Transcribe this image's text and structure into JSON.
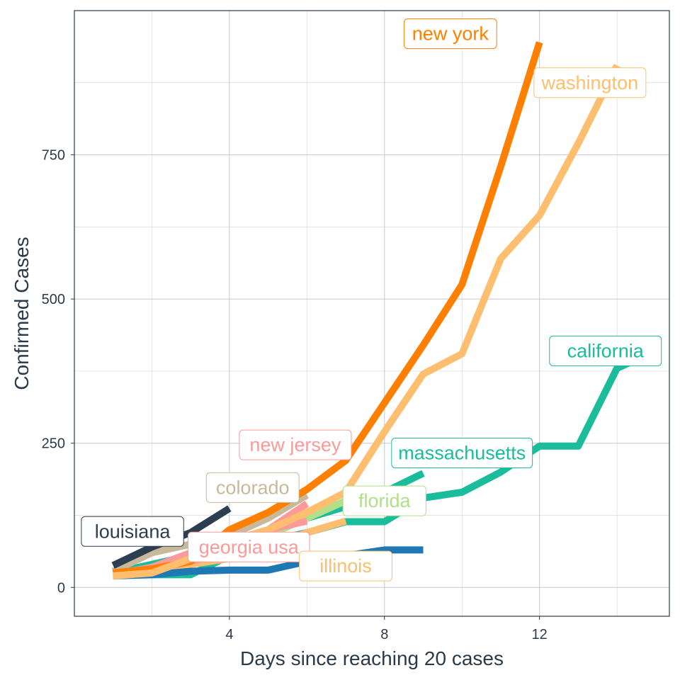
{
  "chart_data": {
    "type": "line",
    "title": "",
    "xlabel": "Days since reaching 20 cases",
    "ylabel": "Confirmed Cases",
    "xlim": [
      0,
      15.35
    ],
    "ylim": [
      -50,
      1000
    ],
    "xticks": [
      4,
      8,
      12
    ],
    "yticks": [
      0,
      250,
      500,
      750
    ],
    "x_tick_labels": [
      "4",
      "8",
      "12"
    ],
    "y_tick_labels": [
      "0",
      "250",
      "500",
      "750"
    ],
    "grid": true,
    "legend": "none (direct labels)",
    "series": [
      {
        "name": "california",
        "color": "#1abc9c",
        "points": [
          [
            2,
            22
          ],
          [
            3,
            22
          ],
          [
            4,
            55
          ],
          [
            5,
            80
          ],
          [
            6,
            95
          ],
          [
            7,
            114
          ],
          [
            8,
            114
          ],
          [
            9,
            155
          ],
          [
            10,
            165
          ],
          [
            11,
            200
          ],
          [
            12,
            245
          ],
          [
            13,
            245
          ],
          [
            14,
            380
          ],
          [
            15,
            410
          ]
        ]
      },
      {
        "name": "massachusetts",
        "color": "#1abc9c",
        "points": [
          [
            1,
            25
          ],
          [
            2,
            40
          ],
          [
            3,
            55
          ],
          [
            4,
            80
          ],
          [
            5,
            100
          ],
          [
            6,
            120
          ],
          [
            7,
            140
          ],
          [
            8,
            165
          ],
          [
            9,
            198
          ]
        ]
      },
      {
        "name": "illinois",
        "color": "#fdbf6f",
        "points": [
          [
            1,
            20
          ],
          [
            2,
            30
          ],
          [
            3,
            40
          ],
          [
            4,
            50
          ],
          [
            5,
            70
          ],
          [
            6,
            95
          ],
          [
            7,
            115
          ]
        ]
      },
      {
        "name": "florida",
        "color": "#b2df8a",
        "points": [
          [
            1,
            25
          ],
          [
            2,
            32
          ],
          [
            3,
            45
          ],
          [
            4,
            60
          ],
          [
            5,
            90
          ],
          [
            6,
            120
          ],
          [
            7,
            150
          ]
        ]
      },
      {
        "name": "colorado",
        "color": "#c9b99b",
        "points": [
          [
            1,
            28
          ],
          [
            2,
            60
          ],
          [
            3,
            75
          ],
          [
            4,
            90
          ],
          [
            5,
            120
          ],
          [
            6,
            160
          ]
        ]
      },
      {
        "name": "new jersey",
        "color": "#fb9a99",
        "points": [
          [
            1,
            25
          ],
          [
            2,
            30
          ],
          [
            3,
            45
          ],
          [
            4,
            60
          ],
          [
            5,
            100
          ],
          [
            6,
            145
          ]
        ]
      },
      {
        "name": "georgia usa",
        "color": "#fb9a99",
        "points": [
          [
            1,
            22
          ],
          [
            2,
            35
          ],
          [
            3,
            60
          ],
          [
            4,
            80
          ],
          [
            5,
            100
          ],
          [
            6,
            115
          ]
        ]
      },
      {
        "name": "louisiana",
        "color": "#2c3e50",
        "points": [
          [
            1,
            38
          ],
          [
            2,
            70
          ],
          [
            3,
            95
          ],
          [
            4,
            137
          ]
        ]
      },
      {
        "name": "",
        "color": "#1f78b4",
        "points": [
          [
            1,
            20
          ],
          [
            2,
            22
          ],
          [
            3,
            28
          ],
          [
            4,
            30
          ],
          [
            5,
            30
          ],
          [
            6,
            45
          ],
          [
            7,
            55
          ],
          [
            8,
            65
          ],
          [
            9,
            65
          ]
        ]
      },
      {
        "name": "new york",
        "color": "#ff7f00",
        "points": [
          [
            1,
            25
          ],
          [
            2,
            32
          ],
          [
            3,
            45
          ],
          [
            4,
            100
          ],
          [
            5,
            130
          ],
          [
            6,
            170
          ],
          [
            7,
            220
          ],
          [
            8,
            320
          ],
          [
            9,
            420
          ],
          [
            10,
            525
          ],
          [
            11,
            730
          ],
          [
            12,
            945
          ]
        ]
      },
      {
        "name": "washington",
        "color": "#fdbf6f",
        "points": [
          [
            1,
            20
          ],
          [
            2,
            25
          ],
          [
            3,
            50
          ],
          [
            4,
            80
          ],
          [
            5,
            100
          ],
          [
            6,
            130
          ],
          [
            7,
            165
          ],
          [
            8,
            270
          ],
          [
            9,
            370
          ],
          [
            10,
            405
          ],
          [
            11,
            570
          ],
          [
            12,
            645
          ],
          [
            13,
            770
          ],
          [
            14,
            905
          ]
        ]
      }
    ],
    "annotations": [
      {
        "text": "new york",
        "color": "#ff7f00",
        "at": [
          9.7,
          960
        ]
      },
      {
        "text": "washington",
        "color": "#fdbf6f",
        "at": [
          13.3,
          875
        ]
      },
      {
        "text": "california",
        "color": "#1abc9c",
        "at": [
          13.7,
          410
        ]
      },
      {
        "text": "massachusetts",
        "color": "#1abc9c",
        "at": [
          10.0,
          233
        ]
      },
      {
        "text": "new jersey",
        "color": "#fb9a99",
        "at": [
          5.7,
          247
        ]
      },
      {
        "text": "colorado",
        "color": "#c9b99b",
        "at": [
          4.6,
          173
        ]
      },
      {
        "text": "florida",
        "color": "#b2df8a",
        "at": [
          8.0,
          150
        ]
      },
      {
        "text": "louisiana",
        "color": "#2c3e50",
        "at": [
          1.5,
          97
        ]
      },
      {
        "text": "georgia usa",
        "color": "#fb9a99",
        "at": [
          4.5,
          70
        ]
      },
      {
        "text": "illinois",
        "color": "#fdbf6f",
        "at": [
          7.0,
          37
        ]
      }
    ]
  }
}
